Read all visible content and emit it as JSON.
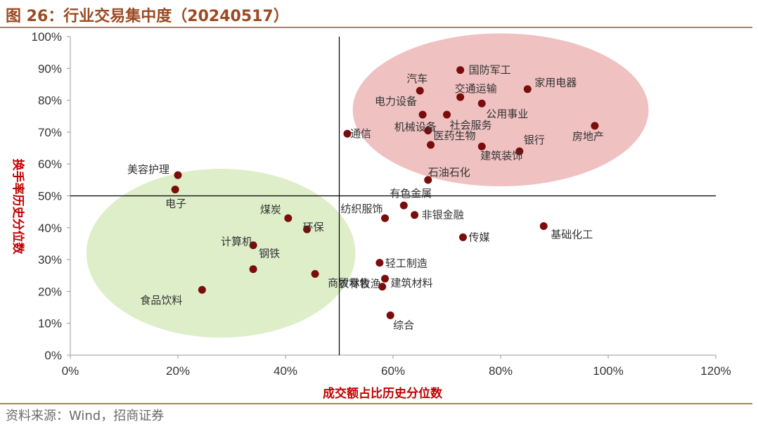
{
  "header": {
    "title": "图 26：行业交易集中度（20240517）"
  },
  "footer": {
    "source": "资料来源：Wind，招商证券"
  },
  "chart_data": {
    "type": "scatter",
    "xlabel": "成交额占比历史分位数",
    "ylabel": "换手率历史分位数",
    "xlim": [
      0,
      120
    ],
    "ylim": [
      0,
      100
    ],
    "x_ticks": [
      "0%",
      "20%",
      "40%",
      "60%",
      "80%",
      "100%",
      "120%"
    ],
    "y_ticks": [
      "0%",
      "10%",
      "20%",
      "30%",
      "40%",
      "50%",
      "60%",
      "70%",
      "80%",
      "90%",
      "100%"
    ],
    "reference_lines": {
      "x": 50,
      "y": 50
    },
    "marker_color": "#7b0c0c",
    "regions": [
      {
        "name": "high",
        "cx": 80,
        "cy": 77,
        "rx": 27.5,
        "ry": 24,
        "color": "#e8a6a6"
      },
      {
        "name": "low",
        "cx": 28,
        "cy": 32,
        "rx": 25,
        "ry": 26.5,
        "color": "#cfe7b2"
      }
    ],
    "points": [
      {
        "label": "国防军工",
        "x": 72.5,
        "y": 89.5
      },
      {
        "label": "汽车",
        "x": 65.0,
        "y": 83.0
      },
      {
        "label": "家用电器",
        "x": 85.0,
        "y": 83.5
      },
      {
        "label": "交通运输",
        "x": 72.5,
        "y": 81.0
      },
      {
        "label": "电力设备",
        "x": 65.5,
        "y": 75.5
      },
      {
        "label": "公用事业",
        "x": 76.5,
        "y": 79.0
      },
      {
        "label": "机械设备",
        "x": 66.5,
        "y": 70.5
      },
      {
        "label": "社会服务",
        "x": 70.0,
        "y": 75.5
      },
      {
        "label": "通信",
        "x": 51.5,
        "y": 69.5
      },
      {
        "label": "房地产",
        "x": 97.5,
        "y": 72.0
      },
      {
        "label": "医药生物",
        "x": 67.0,
        "y": 66.0
      },
      {
        "label": "银行",
        "x": 83.5,
        "y": 64.0
      },
      {
        "label": "建筑装饰",
        "x": 76.5,
        "y": 65.5
      },
      {
        "label": "石油石化",
        "x": 66.5,
        "y": 55.0
      },
      {
        "label": "美容护理",
        "x": 20.0,
        "y": 56.5
      },
      {
        "label": "电子",
        "x": 19.5,
        "y": 52.0
      },
      {
        "label": "有色金属",
        "x": 62.0,
        "y": 47.0
      },
      {
        "label": "非银金融",
        "x": 64.0,
        "y": 44.0
      },
      {
        "label": "煤炭",
        "x": 40.5,
        "y": 43.0
      },
      {
        "label": "纺织服饰",
        "x": 58.5,
        "y": 43.0
      },
      {
        "label": "环保",
        "x": 44.0,
        "y": 39.5
      },
      {
        "label": "基础化工",
        "x": 88.0,
        "y": 40.5
      },
      {
        "label": "传媒",
        "x": 73.0,
        "y": 37.0
      },
      {
        "label": "计算机",
        "x": 34.0,
        "y": 34.5
      },
      {
        "label": "钢铁",
        "x": 34.0,
        "y": 27.0
      },
      {
        "label": "轻工制造",
        "x": 57.5,
        "y": 29.0
      },
      {
        "label": "商贸零售",
        "x": 45.5,
        "y": 25.5
      },
      {
        "label": "建筑材料",
        "x": 58.5,
        "y": 24.0
      },
      {
        "label": "农林牧渔",
        "x": 58.0,
        "y": 21.5
      },
      {
        "label": "食品饮料",
        "x": 24.5,
        "y": 20.5
      },
      {
        "label": "综合",
        "x": 59.5,
        "y": 12.5
      }
    ]
  }
}
